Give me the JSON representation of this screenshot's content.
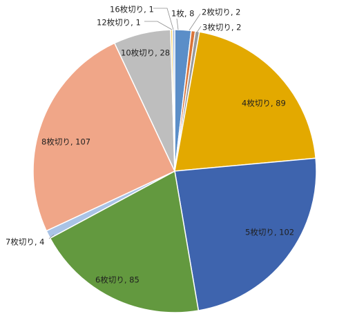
{
  "chart_data": {
    "type": "pie",
    "title": "",
    "slices": [
      {
        "label": "1枚",
        "value": 8,
        "color": "#5b8ec8"
      },
      {
        "label": "2枚切り",
        "value": 2,
        "color": "#d9753a"
      },
      {
        "label": "3枚切り",
        "value": 2,
        "color": "#9a9a9a"
      },
      {
        "label": "4枚切り",
        "value": 89,
        "color": "#e3a900"
      },
      {
        "label": "5枚切り",
        "value": 102,
        "color": "#3e64ae"
      },
      {
        "label": "6枚切り",
        "value": 85,
        "color": "#63993f"
      },
      {
        "label": "7枚切り",
        "value": 4,
        "color": "#a9c3e6"
      },
      {
        "label": "8枚切り",
        "value": 107,
        "color": "#f0a688"
      },
      {
        "label": "10枚切り",
        "value": 28,
        "color": "#bebebe"
      },
      {
        "label": "12枚切り",
        "value": 1,
        "color": "#f5d36a"
      },
      {
        "label": "16枚切り",
        "value": 1,
        "color": "#8faee0"
      }
    ]
  }
}
